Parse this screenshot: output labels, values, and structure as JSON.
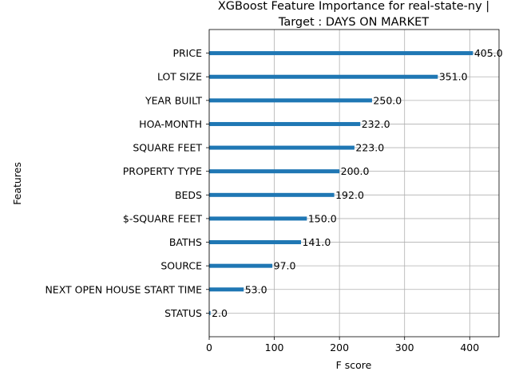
{
  "chart_data": {
    "type": "bar",
    "orientation": "horizontal",
    "title": "XGBoost Feature Importance for real-state-ny |",
    "subtitle": "Target : DAYS ON MARKET",
    "xlabel": "F score",
    "ylabel": "Features",
    "xlim": [
      0,
      445
    ],
    "xticks": [
      0,
      100,
      200,
      300,
      400
    ],
    "grid": true,
    "categories": [
      "PRICE",
      "LOT SIZE",
      "YEAR BUILT",
      "HOA-MONTH",
      "SQUARE FEET",
      "PROPERTY TYPE",
      "BEDS",
      "$-SQUARE FEET",
      "BATHS",
      "SOURCE",
      "NEXT OPEN HOUSE START TIME",
      "STATUS"
    ],
    "values": [
      405.0,
      351.0,
      250.0,
      232.0,
      223.0,
      200.0,
      192.0,
      150.0,
      141.0,
      97.0,
      53.0,
      2.0
    ],
    "value_labels": [
      "405.0",
      "351.0",
      "250.0",
      "232.0",
      "223.0",
      "200.0",
      "192.0",
      "150.0",
      "141.0",
      "97.0",
      "53.0",
      "2.0"
    ],
    "bar_color": "#1f77b4",
    "grid_color": "#b0b0b0"
  }
}
